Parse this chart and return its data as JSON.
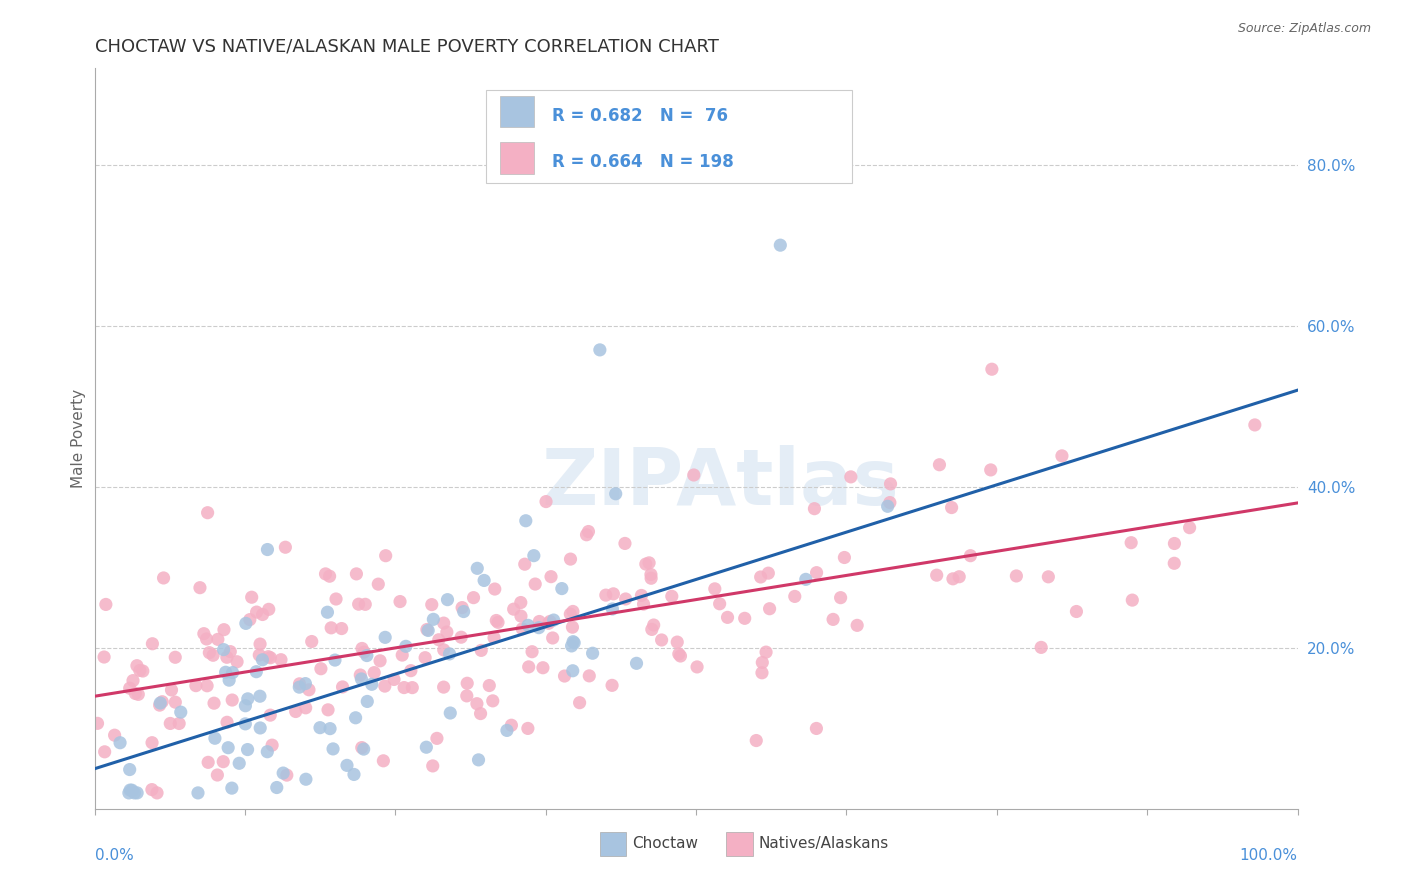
{
  "title": "CHOCTAW VS NATIVE/ALASKAN MALE POVERTY CORRELATION CHART",
  "source": "Source: ZipAtlas.com",
  "ylabel": "Male Poverty",
  "yticks": [
    "20.0%",
    "40.0%",
    "60.0%",
    "80.0%"
  ],
  "ytick_vals": [
    0.2,
    0.4,
    0.6,
    0.8
  ],
  "xlim": [
    0.0,
    1.0
  ],
  "ylim": [
    0.0,
    0.92
  ],
  "choctaw_R": 0.682,
  "choctaw_N": 76,
  "native_R": 0.664,
  "native_N": 198,
  "choctaw_color": "#a8c4e0",
  "choctaw_line_color": "#2060a8",
  "native_color": "#f4b0c4",
  "native_line_color": "#d03868",
  "legend_label_choctaw": "Choctaw",
  "legend_label_native": "Natives/Alaskans",
  "watermark": "ZIPAtlas",
  "title_color": "#333333",
  "axis_label_color": "#666666",
  "right_tick_color": "#4a90d9",
  "grid_color": "#cccccc",
  "title_fontsize": 13,
  "label_fontsize": 11,
  "tick_fontsize": 11,
  "legend_fontsize": 12
}
